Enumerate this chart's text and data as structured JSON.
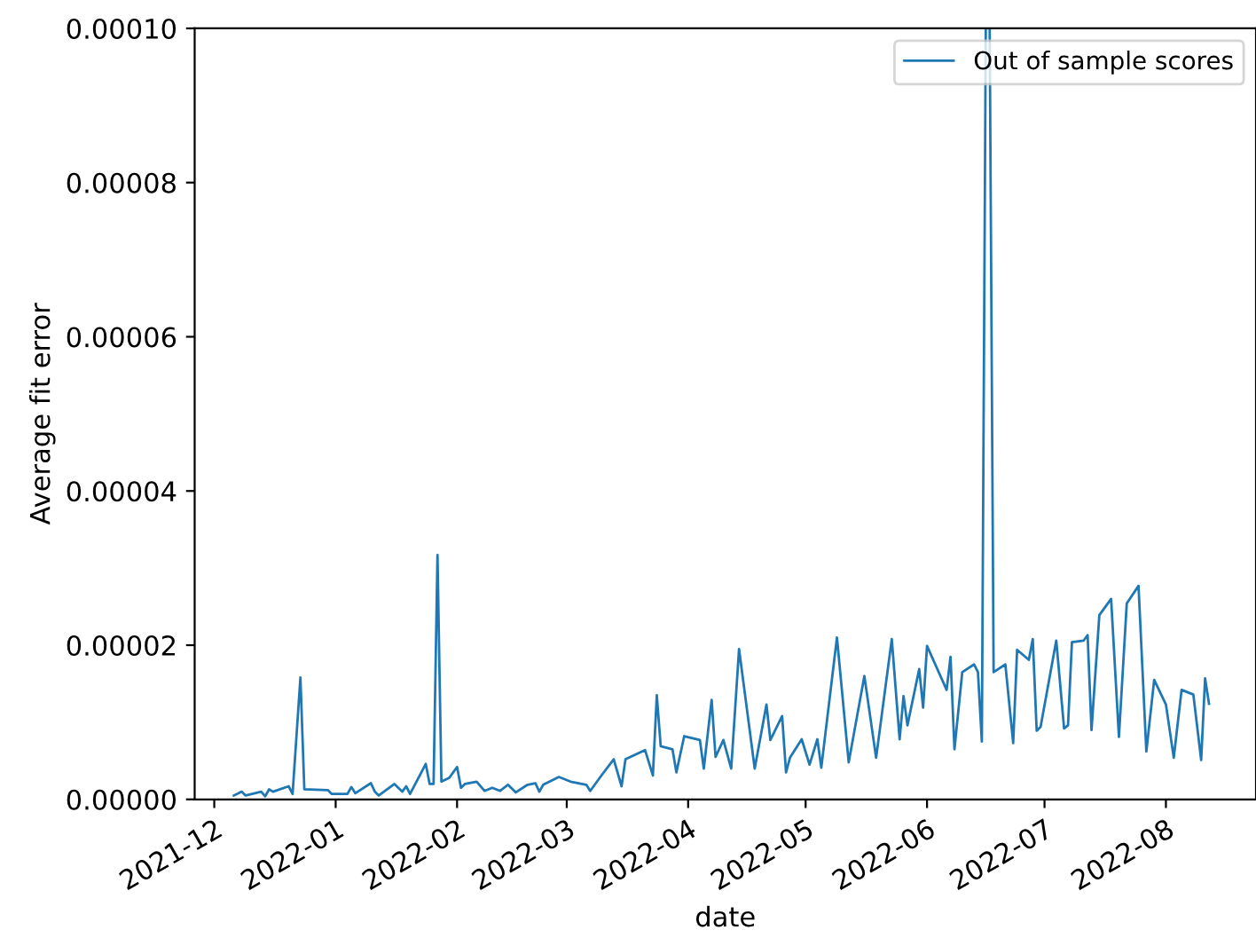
{
  "chart_data": {
    "type": "line",
    "xlabel": "date",
    "ylabel": "Average fit error",
    "x": [
      "2021-12-06",
      "2021-12-08",
      "2021-12-09",
      "2021-12-13",
      "2021-12-14",
      "2021-12-15",
      "2021-12-16",
      "2021-12-20",
      "2021-12-21",
      "2021-12-23",
      "2021-12-24",
      "2021-12-30",
      "2021-12-31",
      "2022-01-04",
      "2022-01-05",
      "2022-01-06",
      "2022-01-10",
      "2022-01-11",
      "2022-01-12",
      "2022-01-16",
      "2022-01-18",
      "2022-01-19",
      "2022-01-20",
      "2022-01-24",
      "2022-01-25",
      "2022-01-26",
      "2022-01-27",
      "2022-01-28",
      "2022-01-30",
      "2022-02-01",
      "2022-02-02",
      "2022-02-03",
      "2022-02-06",
      "2022-02-08",
      "2022-02-10",
      "2022-02-12",
      "2022-02-14",
      "2022-02-16",
      "2022-02-19",
      "2022-02-21",
      "2022-02-22",
      "2022-02-23",
      "2022-02-27",
      "2022-03-02",
      "2022-03-06",
      "2022-03-07",
      "2022-03-10",
      "2022-03-13",
      "2022-03-15",
      "2022-03-16",
      "2022-03-21",
      "2022-03-23",
      "2022-03-24",
      "2022-03-25",
      "2022-03-28",
      "2022-03-29",
      "2022-03-31",
      "2022-04-04",
      "2022-04-05",
      "2022-04-07",
      "2022-04-08",
      "2022-04-10",
      "2022-04-12",
      "2022-04-14",
      "2022-04-18",
      "2022-04-21",
      "2022-04-22",
      "2022-04-25",
      "2022-04-26",
      "2022-04-27",
      "2022-04-30",
      "2022-05-02",
      "2022-05-04",
      "2022-05-05",
      "2022-05-09",
      "2022-05-12",
      "2022-05-16",
      "2022-05-19",
      "2022-05-23",
      "2022-05-25",
      "2022-05-26",
      "2022-05-27",
      "2022-05-30",
      "2022-05-31",
      "2022-06-01",
      "2022-06-06",
      "2022-06-07",
      "2022-06-08",
      "2022-06-10",
      "2022-06-13",
      "2022-06-14",
      "2022-06-15",
      "2022-06-16",
      "2022-06-17",
      "2022-06-18",
      "2022-06-21",
      "2022-06-23",
      "2022-06-24",
      "2022-06-27",
      "2022-06-28",
      "2022-06-29",
      "2022-06-30",
      "2022-07-04",
      "2022-07-06",
      "2022-07-07",
      "2022-07-08",
      "2022-07-11",
      "2022-07-12",
      "2022-07-13",
      "2022-07-15",
      "2022-07-18",
      "2022-07-20",
      "2022-07-22",
      "2022-07-25",
      "2022-07-27",
      "2022-07-29",
      "2022-08-01",
      "2022-08-03",
      "2022-08-05",
      "2022-08-08",
      "2022-08-10",
      "2022-08-11",
      "2022-08-12"
    ],
    "series": [
      {
        "name": "Out of sample scores",
        "color": "#1f77b4",
        "values": [
          5e-07,
          1e-06,
          5e-07,
          1e-06,
          4e-07,
          1.3e-06,
          1e-06,
          1.7e-06,
          7e-07,
          1.58e-05,
          1.3e-06,
          1.2e-06,
          7e-07,
          7e-07,
          1.6e-06,
          8e-07,
          2.1e-06,
          1e-06,
          5e-07,
          2e-06,
          1e-06,
          1.7e-06,
          7e-07,
          4.6e-06,
          2e-06,
          2e-06,
          3.17e-05,
          2.3e-06,
          2.8e-06,
          4.2e-06,
          1.5e-06,
          2e-06,
          2.3e-06,
          1.1e-06,
          1.5e-06,
          1.1e-06,
          1.9e-06,
          9e-07,
          1.9e-06,
          2.1e-06,
          1e-06,
          1.9e-06,
          2.9e-06,
          2.3e-06,
          1.9e-06,
          1.1e-06,
          3.2e-06,
          5.2e-06,
          1.7e-06,
          5.2e-06,
          6.4e-06,
          3.1e-06,
          1.35e-05,
          6.9e-06,
          6.5e-06,
          3.5e-06,
          8.2e-06,
          7.7e-06,
          4e-06,
          1.29e-05,
          5.5e-06,
          7.7e-06,
          4e-06,
          1.95e-05,
          4e-06,
          1.23e-05,
          7.7e-06,
          1.08e-05,
          3.5e-06,
          5.4e-06,
          7.8e-06,
          4.5e-06,
          7.8e-06,
          4.1e-06,
          2.1e-05,
          4.8e-06,
          1.6e-05,
          5.4e-06,
          2.08e-05,
          7.8e-06,
          1.34e-05,
          9.6e-06,
          1.69e-05,
          1.19e-05,
          1.99e-05,
          1.42e-05,
          1.85e-05,
          6.5e-06,
          1.65e-05,
          1.75e-05,
          1.65e-05,
          7.5e-06,
          0.0001,
          0.0001,
          1.65e-05,
          1.75e-05,
          7.3e-06,
          1.94e-05,
          1.81e-05,
          2.08e-05,
          8.9e-06,
          9.4e-06,
          2.06e-05,
          9.2e-06,
          9.6e-06,
          2.04e-05,
          2.06e-05,
          2.13e-05,
          9e-06,
          2.39e-05,
          2.6e-05,
          8.1e-06,
          2.54e-05,
          2.77e-05,
          6.2e-06,
          1.55e-05,
          1.23e-05,
          5.4e-06,
          1.42e-05,
          1.36e-05,
          5.1e-06,
          1.57e-05,
          1.24e-05
        ]
      }
    ],
    "xlim": [
      "2021-11-26",
      "2022-08-24"
    ],
    "xticks": [
      "2021-12",
      "2022-01",
      "2022-02",
      "2022-03",
      "2022-04",
      "2022-05",
      "2022-06",
      "2022-07",
      "2022-08"
    ],
    "ylim": [
      0,
      0.0001
    ],
    "yticks": [
      {
        "value": 0,
        "label": "0.00000"
      },
      {
        "value": 2e-05,
        "label": "0.00002"
      },
      {
        "value": 4e-05,
        "label": "0.00004"
      },
      {
        "value": 6e-05,
        "label": "0.00006"
      },
      {
        "value": 8e-05,
        "label": "0.00008"
      },
      {
        "value": 0.0001,
        "label": "0.00010"
      }
    ],
    "legend": "top right",
    "grid": false
  }
}
